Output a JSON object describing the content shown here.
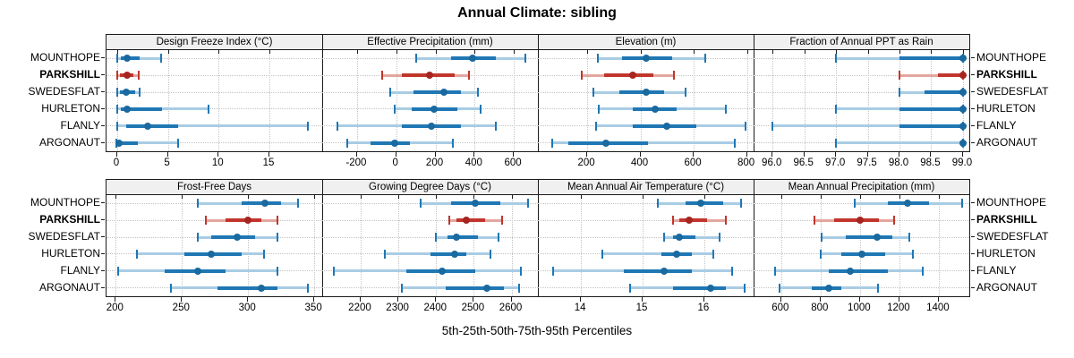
{
  "title": "Annual Climate: sibling",
  "caption": "5th-25th-50th-75th-95th Percentiles",
  "stations": [
    "MOUNTHOPE",
    "PARKSHILL",
    "SWEDESFLAT",
    "HURLETON",
    "FLANLY",
    "ARGONAUT"
  ],
  "highlight_station": "PARKSHILL",
  "colors": {
    "series_blue": "#1f77b4",
    "series_blue_light": "#a8cce4",
    "series_blue_dot": "#1a699f",
    "series_red": "#c1352c",
    "series_red_light": "#e3a79f",
    "series_red_dot": "#a62520",
    "grid": "#c4c4c4",
    "border": "#1a1a1a",
    "strip_bg": "#f0f0f0",
    "tick": "#1a1a1a"
  },
  "chart_data": {
    "type": "percentile-dotplot",
    "description": "2x4 lattice of horizontal 5-25-50-75-95 percentile interval plots per station; PARKSHILL highlighted red; dotted gridlines; strip headers per panel",
    "legend_position": "none",
    "grid": "dotted",
    "panels": [
      {
        "title": "Design Freeze Index (°C)",
        "xlim": [
          -1.05,
          20.2
        ],
        "ticks": [
          0,
          5,
          10,
          15
        ],
        "tick_labels": [
          "0",
          "5",
          "10",
          "15"
        ],
        "series": [
          {
            "station": "MOUNTHOPE",
            "p": [
              0,
              0.4,
              1.0,
              2.2,
              4.3
            ]
          },
          {
            "station": "PARKSHILL",
            "p": [
              0,
              0.3,
              1.0,
              1.6,
              2.1
            ]
          },
          {
            "station": "SWEDESFLAT",
            "p": [
              0,
              0.3,
              0.9,
              1.8,
              2.2
            ]
          },
          {
            "station": "HURLETON",
            "p": [
              0,
              0.4,
              1.0,
              4.4,
              9.0
            ]
          },
          {
            "station": "FLANLY",
            "p": [
              0,
              0.9,
              3.0,
              6.0,
              18.8
            ]
          },
          {
            "station": "ARGONAUT",
            "p": [
              -0.1,
              0.1,
              0.2,
              2.0,
              6.0
            ]
          }
        ]
      },
      {
        "title": "Effective Precipitation (mm)",
        "xlim": [
          -378,
          723
        ],
        "ticks": [
          -200,
          0,
          200,
          400,
          600
        ],
        "tick_labels": [
          "-200",
          "0",
          "200",
          "400",
          "600"
        ],
        "series": [
          {
            "station": "MOUNTHOPE",
            "p": [
              100,
              280,
              390,
              510,
              660
            ]
          },
          {
            "station": "PARKSHILL",
            "p": [
              -70,
              30,
              170,
              300,
              370
            ]
          },
          {
            "station": "SWEDESFLAT",
            "p": [
              -30,
              90,
              245,
              330,
              415
            ]
          },
          {
            "station": "HURLETON",
            "p": [
              -10,
              80,
              195,
              310,
              430
            ]
          },
          {
            "station": "FLANLY",
            "p": [
              -300,
              30,
              180,
              330,
              510
            ]
          },
          {
            "station": "ARGONAUT",
            "p": [
              -250,
              -130,
              -10,
              70,
              290
            ]
          }
        ]
      },
      {
        "title": "Elevation (m)",
        "xlim": [
          15,
          825
        ],
        "ticks": [
          200,
          400,
          600,
          800
        ],
        "tick_labels": [
          "200",
          "400",
          "600",
          "800"
        ],
        "series": [
          {
            "station": "MOUNTHOPE",
            "p": [
              240,
              330,
              420,
              520,
              645
            ]
          },
          {
            "station": "PARKSHILL",
            "p": [
              180,
              265,
              370,
              450,
              525
            ]
          },
          {
            "station": "SWEDESFLAT",
            "p": [
              225,
              320,
              420,
              490,
              570
            ]
          },
          {
            "station": "HURLETON",
            "p": [
              245,
              370,
              455,
              535,
              720
            ]
          },
          {
            "station": "FLANLY",
            "p": [
              235,
              370,
              500,
              610,
              795
            ]
          },
          {
            "station": "ARGONAUT",
            "p": [
              70,
              130,
              270,
              430,
              755
            ]
          }
        ]
      },
      {
        "title": "Fraction of Annual PPT as Rain",
        "xlim": [
          95.7,
          99.1
        ],
        "ticks": [
          96.0,
          96.5,
          97.0,
          97.5,
          98.0,
          98.5,
          99.0
        ],
        "tick_labels": [
          "96.0",
          "96.5",
          "97.0",
          "97.5",
          "98.0",
          "98.5",
          "99.0"
        ],
        "series": [
          {
            "station": "MOUNTHOPE",
            "p": [
              97.0,
              98.0,
              99.0,
              99.0,
              99.0
            ]
          },
          {
            "station": "PARKSHILL",
            "p": [
              98.0,
              98.6,
              99.0,
              99.0,
              99.0
            ]
          },
          {
            "station": "SWEDESFLAT",
            "p": [
              98.0,
              98.4,
              99.0,
              99.0,
              99.0
            ]
          },
          {
            "station": "HURLETON",
            "p": [
              97.0,
              98.0,
              99.0,
              99.0,
              99.0
            ]
          },
          {
            "station": "FLANLY",
            "p": [
              96.0,
              98.0,
              99.0,
              99.0,
              99.0
            ]
          },
          {
            "station": "ARGONAUT",
            "p": [
              97.0,
              99.0,
              99.0,
              99.0,
              99.0
            ]
          }
        ]
      },
      {
        "title": "Frost-Free Days",
        "xlim": [
          193,
          356
        ],
        "ticks": [
          200,
          250,
          300,
          350
        ],
        "tick_labels": [
          "200",
          "250",
          "300",
          "350"
        ],
        "series": [
          {
            "station": "MOUNTHOPE",
            "p": [
              262,
              295,
              313,
              325,
              338
            ]
          },
          {
            "station": "PARKSHILL",
            "p": [
              268,
              283,
              300,
              310,
              322
            ]
          },
          {
            "station": "SWEDESFLAT",
            "p": [
              262,
              272,
              292,
              305,
              322
            ]
          },
          {
            "station": "HURLETON",
            "p": [
              216,
              252,
              272,
              295,
              312
            ]
          },
          {
            "station": "FLANLY",
            "p": [
              202,
              237,
              262,
              283,
              322
            ]
          },
          {
            "station": "ARGONAUT",
            "p": [
              242,
              277,
              310,
              322,
              345
            ]
          }
        ]
      },
      {
        "title": "Growing Degree Days (°C)",
        "xlim": [
          2098,
          2670
        ],
        "ticks": [
          2200,
          2300,
          2400,
          2500,
          2600
        ],
        "tick_labels": [
          "2200",
          "2300",
          "2400",
          "2500",
          "2600"
        ],
        "series": [
          {
            "station": "MOUNTHOPE",
            "p": [
              2360,
              2440,
              2505,
              2570,
              2645
            ]
          },
          {
            "station": "PARKSHILL",
            "p": [
              2435,
              2455,
              2480,
              2530,
              2575
            ]
          },
          {
            "station": "SWEDESFLAT",
            "p": [
              2400,
              2430,
              2455,
              2510,
              2565
            ]
          },
          {
            "station": "HURLETON",
            "p": [
              2265,
              2385,
              2450,
              2480,
              2545
            ]
          },
          {
            "station": "FLANLY",
            "p": [
              2130,
              2320,
              2415,
              2505,
              2625
            ]
          },
          {
            "station": "ARGONAUT",
            "p": [
              2310,
              2425,
              2535,
              2580,
              2620
            ]
          }
        ]
      },
      {
        "title": "Mean Annual Air Temperature (°C)",
        "xlim": [
          13.3,
          16.8
        ],
        "ticks": [
          14,
          15,
          16
        ],
        "tick_labels": [
          "14",
          "15",
          "16"
        ],
        "series": [
          {
            "station": "MOUNTHOPE",
            "p": [
              15.25,
              15.7,
              15.95,
              16.3,
              16.6
            ]
          },
          {
            "station": "PARKSHILL",
            "p": [
              15.5,
              15.6,
              15.75,
              16.05,
              16.35
            ]
          },
          {
            "station": "SWEDESFLAT",
            "p": [
              15.35,
              15.5,
              15.6,
              15.85,
              16.25
            ]
          },
          {
            "station": "HURLETON",
            "p": [
              14.35,
              15.3,
              15.55,
              15.8,
              16.15
            ]
          },
          {
            "station": "FLANLY",
            "p": [
              13.55,
              14.7,
              15.35,
              15.8,
              16.45
            ]
          },
          {
            "station": "ARGONAUT",
            "p": [
              14.8,
              15.5,
              16.1,
              16.35,
              16.65
            ]
          }
        ]
      },
      {
        "title": "Mean Annual Precipitation (mm)",
        "xlim": [
          460,
          1555
        ],
        "ticks": [
          600,
          800,
          1000,
          1200,
          1400
        ],
        "tick_labels": [
          "600",
          "800",
          "1000",
          "1200",
          "1400"
        ],
        "series": [
          {
            "station": "MOUNTHOPE",
            "p": [
              975,
              1140,
              1240,
              1350,
              1520
            ]
          },
          {
            "station": "PARKSHILL",
            "p": [
              770,
              870,
              1000,
              1095,
              1175
            ]
          },
          {
            "station": "SWEDESFLAT",
            "p": [
              805,
              930,
              1085,
              1165,
              1250
            ]
          },
          {
            "station": "HURLETON",
            "p": [
              800,
              905,
              1010,
              1130,
              1270
            ]
          },
          {
            "station": "FLANLY",
            "p": [
              570,
              840,
              950,
              1140,
              1320
            ]
          },
          {
            "station": "ARGONAUT",
            "p": [
              590,
              755,
              840,
              905,
              1090
            ]
          }
        ]
      }
    ]
  }
}
